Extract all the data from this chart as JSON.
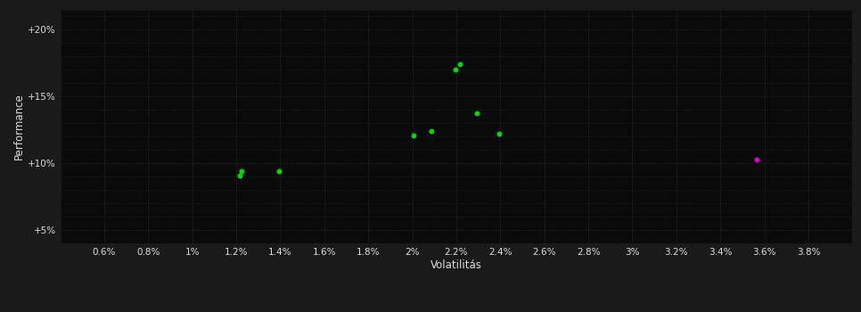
{
  "background_color": "#1a1a1a",
  "plot_bg_color": "#0a0a0a",
  "grid_color": "#2a3a2a",
  "grid_style": ":",
  "xlabel": "Volatilitás",
  "ylabel": "Performance",
  "xlim": [
    0.004,
    0.04
  ],
  "ylim": [
    0.04,
    0.215
  ],
  "xtick_labels": [
    "0.6%",
    "0.8%",
    "1%",
    "1.2%",
    "1.4%",
    "1.6%",
    "1.8%",
    "2%",
    "2.2%",
    "2.4%",
    "2.6%",
    "2.8%",
    "3%",
    "3.2%",
    "3.4%",
    "3.6%",
    "3.8%"
  ],
  "xtick_values": [
    0.006,
    0.008,
    0.01,
    0.012,
    0.014,
    0.016,
    0.018,
    0.02,
    0.022,
    0.024,
    0.026,
    0.028,
    0.03,
    0.032,
    0.034,
    0.036,
    0.038
  ],
  "ytick_labels": [
    "+5%",
    "+10%",
    "+15%",
    "+20%"
  ],
  "ytick_values": [
    0.05,
    0.1,
    0.15,
    0.2
  ],
  "green_points": [
    [
      0.01215,
      0.091
    ],
    [
      0.01225,
      0.094
    ],
    [
      0.01395,
      0.094
    ],
    [
      0.02005,
      0.121
    ],
    [
      0.02085,
      0.124
    ],
    [
      0.02195,
      0.17
    ],
    [
      0.02215,
      0.174
    ],
    [
      0.02295,
      0.137
    ],
    [
      0.02395,
      0.122
    ]
  ],
  "magenta_points": [
    [
      0.03565,
      0.103
    ]
  ],
  "point_size": 18,
  "point_color_green": "#00dd00",
  "point_color_magenta": "#dd00dd",
  "tick_color": "#dddddd",
  "label_color": "#dddddd",
  "tick_fontsize": 7.5,
  "label_fontsize": 8.5
}
